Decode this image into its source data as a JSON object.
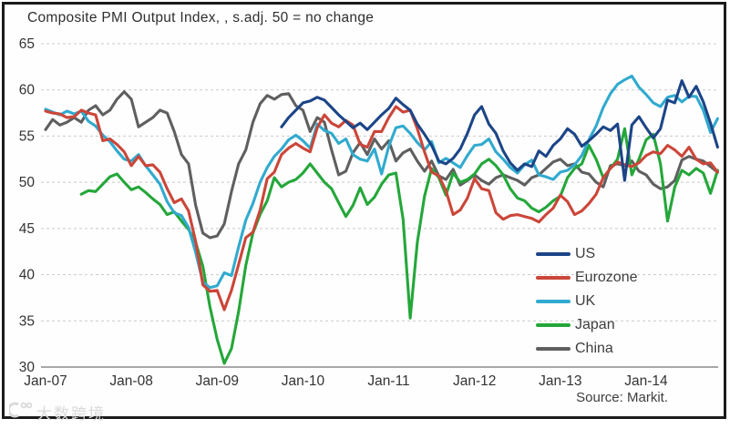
{
  "title": "Composite PMI Output Index, , s.adj. 50 = no change",
  "source": "Source: Markit.",
  "watermark": "大数跨境",
  "chart_data": {
    "type": "line",
    "x_unit": "month",
    "x_start": "Jan-07",
    "x_end": "Nov-14",
    "x_tick_labels": [
      "Jan-07",
      "Jan-08",
      "Jan-09",
      "Jan-10",
      "Jan-11",
      "Jan-12",
      "Jan-13",
      "Jan-14"
    ],
    "ylim": [
      30,
      65
    ],
    "y_ticks": [
      30,
      35,
      40,
      45,
      50,
      55,
      60,
      65
    ],
    "reference_level": 50,
    "grid": "horizontal dashed",
    "legend_position": "inside lower-right",
    "series": [
      {
        "name": "US",
        "color": "#1c4587",
        "values": [
          null,
          null,
          null,
          null,
          null,
          null,
          null,
          null,
          null,
          null,
          null,
          null,
          null,
          null,
          null,
          null,
          null,
          null,
          null,
          null,
          null,
          null,
          null,
          null,
          null,
          null,
          null,
          null,
          null,
          null,
          null,
          null,
          null,
          56.0,
          57.0,
          57.8,
          58.6,
          58.8,
          59.2,
          58.9,
          58.1,
          57.3,
          56.6,
          55.9,
          56.4,
          55.7,
          56.5,
          57.3,
          58.0,
          59.1,
          58.4,
          57.8,
          56.3,
          55.2,
          54.0,
          52.3,
          52.0,
          52.6,
          53.6,
          55.3,
          57.3,
          58.2,
          56.3,
          55.3,
          53.4,
          52.1,
          51.3,
          52.0,
          51.7,
          53.4,
          52.8,
          54.0,
          54.7,
          55.8,
          55.2,
          53.9,
          54.5,
          55.2,
          56.0,
          55.6,
          56.3,
          50.2,
          56.2,
          57.1,
          55.9,
          54.8,
          55.8,
          58.9,
          58.6,
          61.0,
          59.2,
          60.4,
          58.7,
          56.4,
          53.8
        ]
      },
      {
        "name": "Eurozone",
        "color": "#cb4639",
        "values": [
          57.7,
          57.5,
          57.4,
          57.0,
          57.1,
          57.8,
          57.5,
          57.3,
          54.5,
          54.7,
          54.1,
          53.3,
          51.8,
          52.8,
          51.8,
          51.9,
          51.1,
          49.3,
          47.8,
          48.2,
          46.9,
          43.6,
          38.9,
          38.2,
          38.3,
          36.2,
          38.3,
          41.1,
          44.0,
          44.6,
          47.0,
          50.4,
          51.1,
          53.0,
          53.7,
          54.2,
          53.7,
          53.3,
          55.9,
          57.3,
          56.4,
          56.0,
          56.7,
          56.2,
          54.1,
          53.8,
          55.5,
          55.5,
          57.0,
          58.2,
          57.6,
          57.8,
          55.8,
          53.3,
          51.1,
          50.7,
          49.1,
          46.5,
          47.0,
          48.3,
          50.4,
          49.3,
          49.1,
          46.7,
          46.0,
          46.4,
          46.5,
          46.3,
          46.1,
          45.7,
          46.5,
          47.2,
          48.6,
          47.9,
          46.5,
          46.9,
          47.7,
          48.7,
          50.5,
          51.5,
          52.2,
          51.9,
          51.7,
          52.1,
          52.9,
          53.3,
          53.1,
          54.0,
          53.5,
          52.8,
          53.8,
          52.5,
          52.0,
          52.1,
          51.1
        ]
      },
      {
        "name": "UK",
        "color": "#31aacf",
        "values": [
          57.9,
          57.6,
          57.3,
          57.7,
          57.4,
          57.7,
          56.6,
          56.1,
          55.1,
          54.4,
          53.4,
          52.5,
          52.3,
          53.0,
          51.8,
          50.8,
          49.8,
          47.9,
          46.7,
          46.4,
          45.1,
          42.4,
          39.2,
          38.6,
          38.8,
          40.2,
          39.9,
          43.0,
          45.9,
          47.7,
          50.0,
          51.6,
          52.8,
          53.6,
          54.6,
          55.1,
          54.5,
          53.7,
          56.3,
          55.6,
          55.3,
          54.2,
          54.7,
          53.0,
          52.5,
          52.3,
          53.6,
          50.9,
          53.9,
          55.9,
          56.1,
          55.3,
          54.3,
          53.5,
          54.4,
          52.1,
          52.6,
          52.1,
          51.6,
          52.9,
          54.0,
          54.1,
          54.7,
          53.3,
          52.5,
          51.6,
          51.0,
          51.9,
          52.4,
          50.8,
          50.6,
          50.3,
          51.1,
          51.3,
          51.9,
          52.9,
          54.6,
          56.1,
          58.1,
          59.6,
          60.6,
          61.1,
          61.5,
          60.3,
          59.5,
          58.6,
          58.2,
          59.2,
          59.4,
          58.7,
          59.3,
          59.3,
          57.8,
          55.4,
          56.9
        ]
      },
      {
        "name": "Japan",
        "color": "#24a73a",
        "values": [
          null,
          null,
          null,
          null,
          null,
          48.7,
          49.1,
          49.0,
          49.8,
          50.6,
          50.9,
          50.0,
          49.2,
          49.5,
          48.9,
          48.2,
          47.6,
          46.5,
          46.8,
          45.8,
          44.9,
          43.5,
          40.9,
          36.5,
          33.0,
          30.4,
          32.0,
          36.0,
          41.0,
          44.5,
          46.5,
          48.0,
          50.5,
          49.5,
          50.0,
          50.3,
          51.0,
          52.0,
          51.0,
          50.0,
          49.3,
          47.8,
          46.3,
          47.5,
          49.4,
          47.6,
          48.4,
          49.8,
          50.8,
          51.0,
          46.0,
          35.3,
          43.5,
          48.5,
          51.5,
          50.5,
          48.6,
          51.0,
          50.0,
          50.3,
          50.9,
          52.0,
          52.5,
          51.8,
          50.8,
          49.3,
          48.3,
          48.0,
          47.2,
          46.8,
          47.3,
          48.0,
          48.5,
          50.5,
          51.5,
          52.0,
          54.0,
          52.5,
          50.5,
          51.5,
          52.5,
          55.8,
          50.8,
          52.5,
          54.6,
          55.2,
          52.0,
          45.8,
          49.5,
          51.3,
          50.8,
          51.5,
          51.0,
          48.8,
          51.3
        ]
      },
      {
        "name": "China",
        "color": "#5f5f5f",
        "values": [
          55.7,
          56.8,
          56.2,
          56.5,
          57.0,
          56.5,
          57.8,
          58.3,
          57.3,
          57.8,
          59.0,
          59.8,
          59.0,
          56.0,
          56.5,
          57.0,
          57.8,
          57.5,
          55.5,
          53.0,
          52.0,
          47.5,
          44.5,
          44.0,
          44.2,
          45.5,
          49.0,
          52.0,
          53.5,
          56.5,
          58.5,
          59.4,
          59.0,
          59.5,
          59.6,
          58.3,
          57.8,
          55.5,
          57.0,
          56.5,
          53.5,
          50.8,
          51.2,
          53.2,
          54.3,
          53.0,
          54.7,
          53.6,
          54.5,
          52.3,
          53.2,
          53.6,
          52.3,
          51.2,
          52.3,
          50.7,
          50.3,
          51.4,
          49.7,
          50.2,
          50.8,
          50.2,
          49.8,
          50.5,
          50.8,
          50.5,
          50.2,
          49.7,
          50.5,
          50.8,
          51.5,
          52.2,
          52.5,
          51.8,
          52.0,
          51.1,
          50.9,
          50.0,
          49.5,
          51.8,
          52.0,
          51.8,
          52.3,
          51.2,
          50.8,
          49.8,
          49.3,
          49.5,
          50.2,
          52.4,
          52.8,
          52.5,
          52.3,
          51.7,
          51.1
        ]
      }
    ]
  }
}
